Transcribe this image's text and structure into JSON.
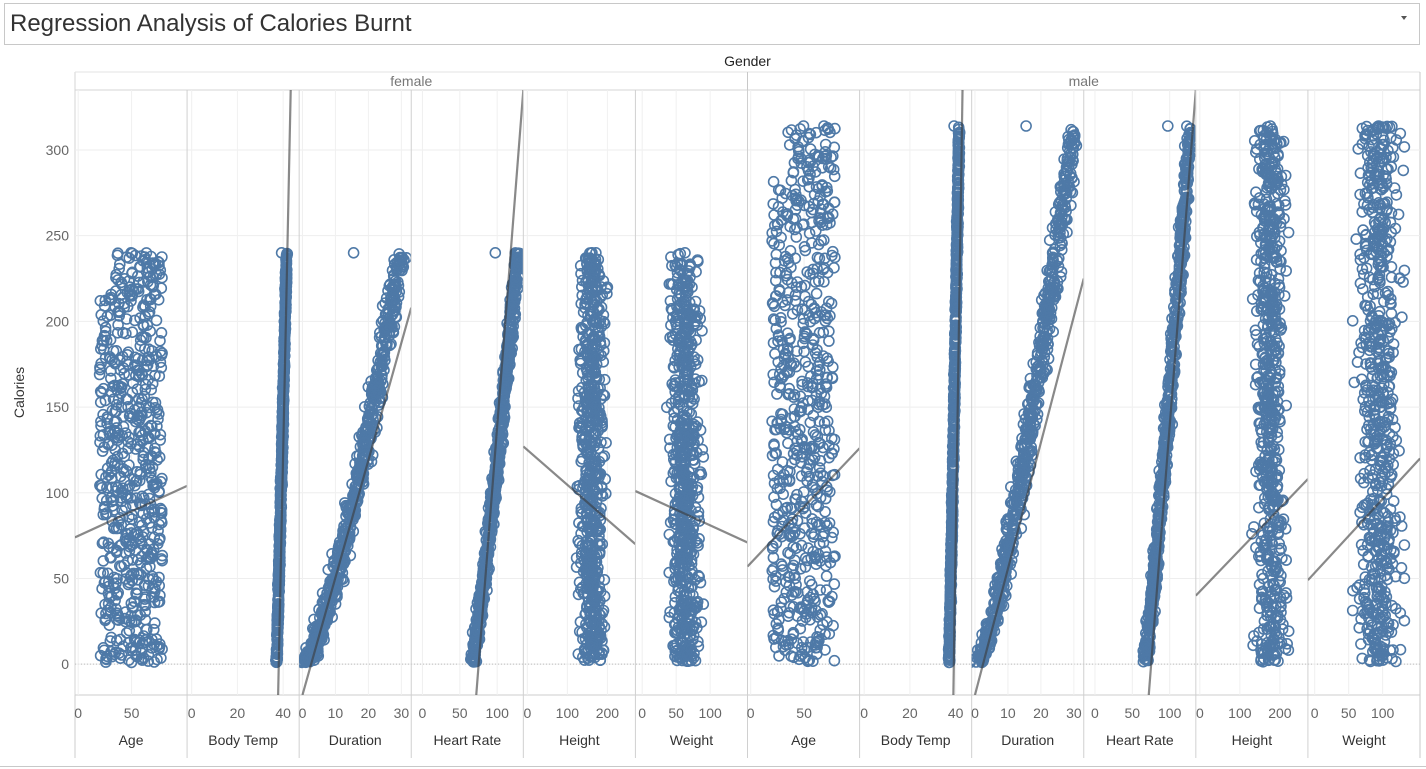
{
  "title": "Regression Analysis of Calories Burnt",
  "icons": {
    "dropdown": "chevron-down-icon"
  },
  "chart_data": {
    "type": "scatter",
    "title": "Regression Analysis of Calories Burnt",
    "column_header": "Gender",
    "ylabel": "Calories",
    "ylim": [
      -18,
      335
    ],
    "yticks": [
      0,
      50,
      100,
      150,
      200,
      250,
      300
    ],
    "grid": true,
    "mark_color": "#4e79a7",
    "trend_color": "#3a3a3a",
    "genders": [
      "female",
      "male"
    ],
    "measures": [
      {
        "name": "Age",
        "xlim": [
          -3,
          102
        ],
        "ticks": [
          0,
          50
        ]
      },
      {
        "name": "Body Temp",
        "xlim": [
          -2,
          47
        ],
        "ticks": [
          0,
          20,
          40
        ]
      },
      {
        "name": "Duration",
        "xlim": [
          -1,
          33
        ],
        "ticks": [
          0,
          10,
          20,
          30
        ]
      },
      {
        "name": "Heart Rate",
        "xlim": [
          -15,
          135
        ],
        "ticks": [
          0,
          50,
          100
        ]
      },
      {
        "name": "Height",
        "xlim": [
          -10,
          270
        ],
        "ticks": [
          0,
          100,
          200
        ]
      },
      {
        "name": "Weight",
        "xlim": [
          -10,
          155
        ],
        "ticks": [
          0,
          50,
          100
        ]
      }
    ],
    "panels": [
      {
        "gender": "female",
        "measure": "Age",
        "x_range": [
          20,
          79
        ],
        "y_range": [
          1,
          240
        ],
        "trend": [
          [
            -3,
            74
          ],
          [
            102,
            104
          ]
        ]
      },
      {
        "gender": "female",
        "measure": "Body Temp",
        "x_range": [
          37.1,
          41.5
        ],
        "y_range": [
          1,
          240
        ],
        "trend": [
          [
            37.8,
            -18
          ],
          [
            43.3,
            335
          ]
        ]
      },
      {
        "gender": "female",
        "measure": "Duration",
        "x_range": [
          1,
          30
        ],
        "y_range": [
          1,
          240
        ],
        "trend": [
          [
            0,
            -18
          ],
          [
            33,
            208
          ]
        ]
      },
      {
        "gender": "female",
        "measure": "Heart Rate",
        "x_range": [
          67,
          128
        ],
        "y_range": [
          1,
          240
        ],
        "trend": [
          [
            72,
            -18
          ],
          [
            135,
            335
          ]
        ]
      },
      {
        "gender": "female",
        "measure": "Height",
        "x_range": [
          123,
          200
        ],
        "y_range": [
          1,
          240
        ],
        "trend": [
          [
            -10,
            127
          ],
          [
            270,
            70
          ]
        ]
      },
      {
        "gender": "female",
        "measure": "Weight",
        "x_range": [
          36,
          90
        ],
        "y_range": [
          1,
          240
        ],
        "trend": [
          [
            -10,
            101
          ],
          [
            155,
            71
          ]
        ]
      },
      {
        "gender": "male",
        "measure": "Age",
        "x_range": [
          20,
          79
        ],
        "y_range": [
          1,
          314
        ],
        "trend": [
          [
            -3,
            57
          ],
          [
            102,
            126
          ]
        ]
      },
      {
        "gender": "male",
        "measure": "Body Temp",
        "x_range": [
          37.1,
          41.5
        ],
        "y_range": [
          1,
          314
        ],
        "trend": [
          [
            39,
            -18
          ],
          [
            43,
            335
          ]
        ]
      },
      {
        "gender": "male",
        "measure": "Duration",
        "x_range": [
          1,
          30
        ],
        "y_range": [
          1,
          314
        ],
        "trend": [
          [
            0,
            -18
          ],
          [
            33,
            225
          ]
        ]
      },
      {
        "gender": "male",
        "measure": "Heart Rate",
        "x_range": [
          67,
          128
        ],
        "y_range": [
          1,
          314
        ],
        "trend": [
          [
            72,
            -18
          ],
          [
            135,
            335
          ]
        ]
      },
      {
        "gender": "male",
        "measure": "Height",
        "x_range": [
          130,
          222
        ],
        "y_range": [
          1,
          314
        ],
        "trend": [
          [
            -10,
            40
          ],
          [
            270,
            108
          ]
        ]
      },
      {
        "gender": "male",
        "measure": "Weight",
        "x_range": [
          56,
          132
        ],
        "y_range": [
          1,
          314
        ],
        "trend": [
          [
            -10,
            49
          ],
          [
            155,
            120
          ]
        ]
      }
    ]
  }
}
